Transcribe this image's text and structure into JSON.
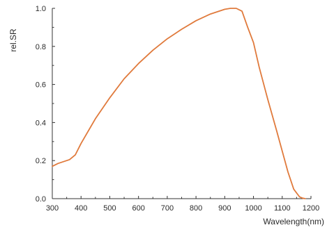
{
  "chart_data": {
    "type": "line",
    "title": "",
    "xlabel": "Wavelength(nm)",
    "ylabel": "rel.SR",
    "xlim": [
      300,
      1200
    ],
    "ylim": [
      0.0,
      1.0
    ],
    "x_ticks": [
      "300",
      "400",
      "500",
      "600",
      "700",
      "800",
      "900",
      "1000",
      "1100",
      "1200"
    ],
    "y_ticks": [
      "0.0",
      "0.2",
      "0.4",
      "0.6",
      "0.8",
      "1.0"
    ],
    "grid": false,
    "legend": "none",
    "line_color": "#e07a3c",
    "series": [
      {
        "x": [
          300,
          320,
          340,
          360,
          380,
          400,
          450,
          500,
          550,
          600,
          650,
          700,
          750,
          800,
          850,
          900,
          920,
          940,
          960,
          980,
          1000,
          1020,
          1050,
          1080,
          1100,
          1120,
          1140,
          1160,
          1170,
          1180
        ],
        "values": [
          0.17,
          0.185,
          0.195,
          0.205,
          0.23,
          0.29,
          0.42,
          0.53,
          0.63,
          0.71,
          0.78,
          0.84,
          0.89,
          0.935,
          0.97,
          0.995,
          1.0,
          1.0,
          0.985,
          0.9,
          0.82,
          0.69,
          0.52,
          0.36,
          0.25,
          0.14,
          0.05,
          0.01,
          0.003,
          0.0
        ]
      }
    ]
  }
}
